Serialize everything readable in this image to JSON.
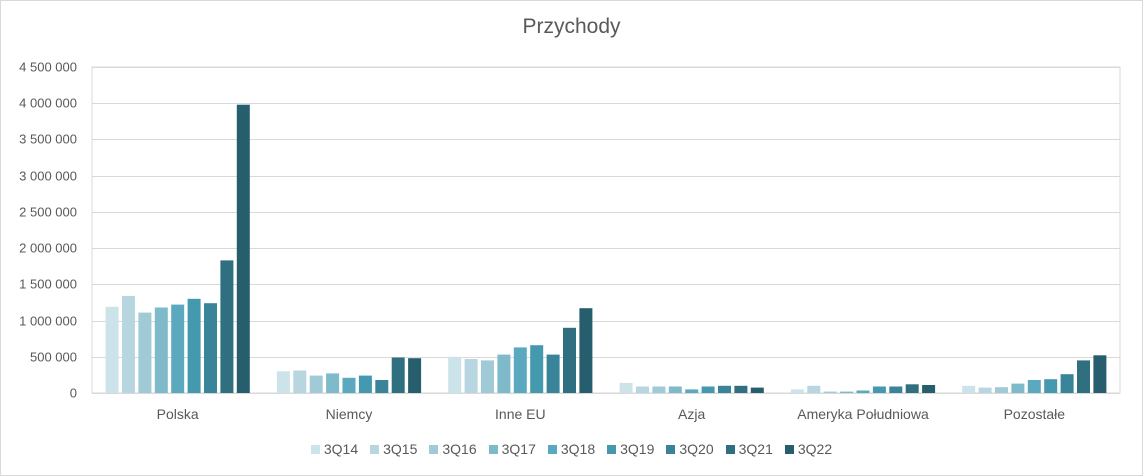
{
  "chart_data": {
    "type": "bar",
    "title": "Przychody",
    "categories": [
      "Polska",
      "Niemcy",
      "Inne EU",
      "Azja",
      "Ameryka Południowa",
      "Pozostałe"
    ],
    "yticks": [
      "0",
      "500 000",
      "1 000 000",
      "1 500 000",
      "2 000 000",
      "2 500 000",
      "3 000 000",
      "3 500 000",
      "4 000 000",
      "4 500 000"
    ],
    "ylim": [
      0,
      4500000
    ],
    "grid": true,
    "legend_position": "bottom",
    "series": [
      {
        "name": "3Q14",
        "color": "#cde3ea",
        "values": [
          1190000,
          300000,
          500000,
          140000,
          50000,
          100000
        ]
      },
      {
        "name": "3Q15",
        "color": "#b7d6e0",
        "values": [
          1340000,
          310000,
          470000,
          90000,
          100000,
          75000
        ]
      },
      {
        "name": "3Q16",
        "color": "#9fcad6",
        "values": [
          1110000,
          240000,
          450000,
          90000,
          20000,
          80000
        ]
      },
      {
        "name": "3Q17",
        "color": "#7fbacb",
        "values": [
          1180000,
          270000,
          530000,
          90000,
          20000,
          130000
        ]
      },
      {
        "name": "3Q18",
        "color": "#5aa9be",
        "values": [
          1220000,
          210000,
          630000,
          50000,
          35000,
          180000
        ]
      },
      {
        "name": "3Q19",
        "color": "#4499ae",
        "values": [
          1300000,
          240000,
          660000,
          90000,
          90000,
          190000
        ]
      },
      {
        "name": "3Q20",
        "color": "#3a849a",
        "values": [
          1240000,
          180000,
          530000,
          100000,
          90000,
          260000
        ]
      },
      {
        "name": "3Q21",
        "color": "#2f6f80",
        "values": [
          1830000,
          490000,
          900000,
          100000,
          120000,
          450000
        ]
      },
      {
        "name": "3Q22",
        "color": "#275e6e",
        "values": [
          3980000,
          480000,
          1170000,
          75000,
          110000,
          520000
        ]
      }
    ]
  }
}
